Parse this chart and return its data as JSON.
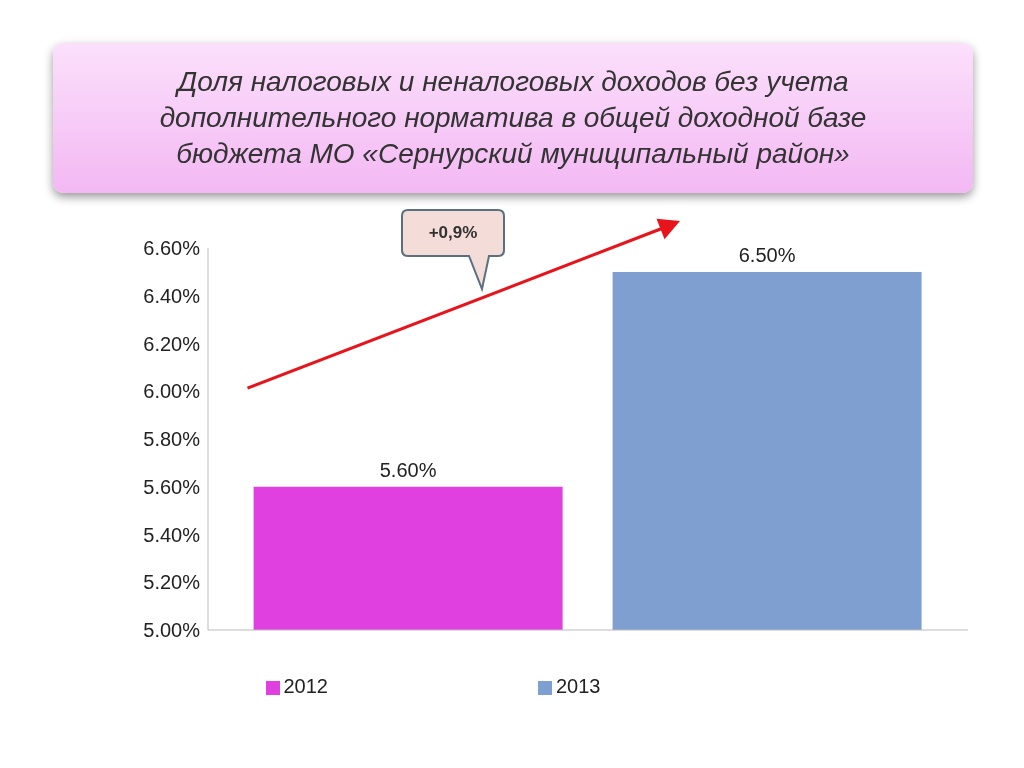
{
  "chart_data": {
    "type": "bar",
    "title": "Доля налоговых и неналоговых доходов без учета дополнительного норматива в общей доходной базе бюджета МО «Сернурский муниципальный район»",
    "categories": [
      null
    ],
    "series": [
      {
        "name": "2012",
        "color": "#e040e0",
        "values": [
          5.6
        ],
        "value_labels": [
          "5.60%"
        ]
      },
      {
        "name": "2013",
        "color": "#7f9fd0",
        "values": [
          6.5
        ],
        "value_labels": [
          "6.50%"
        ]
      }
    ],
    "ylim": [
      5,
      6.6
    ],
    "yticks": [
      {
        "value": 5,
        "label": "5.00%"
      },
      {
        "value": 5.2,
        "label": "5.20%"
      },
      {
        "value": 5.4,
        "label": "5.40%"
      },
      {
        "value": 5.6,
        "label": "5.60%"
      },
      {
        "value": 5.8,
        "label": "5.80%"
      },
      {
        "value": 6,
        "label": "6.00%"
      },
      {
        "value": 6.2,
        "label": "6.20%"
      },
      {
        "value": 6.4,
        "label": "6.40%"
      },
      {
        "value": 6.6,
        "label": "6.60%"
      }
    ],
    "annotations": [
      "+0,9%"
    ],
    "legend": "bottom",
    "grid": false
  }
}
